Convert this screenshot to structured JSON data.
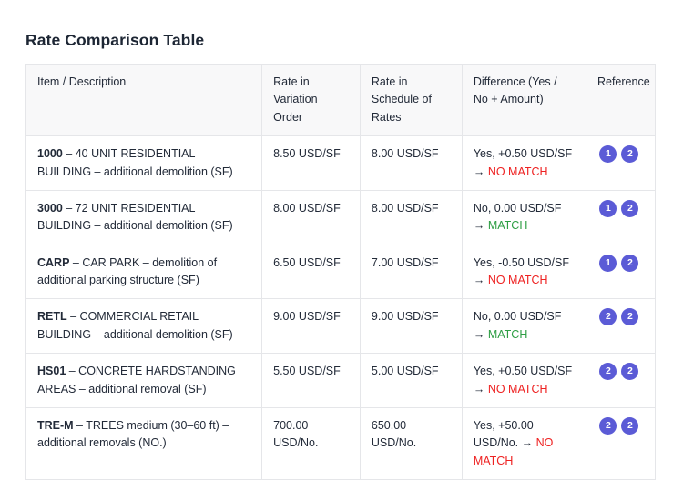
{
  "page": {
    "title": "Rate Comparison Table"
  },
  "table": {
    "columns": [
      {
        "id": "item-description",
        "label": "Item / Description",
        "align": "left"
      },
      {
        "id": "rate-variation-order",
        "label": "Rate in Variation Order",
        "align": "right"
      },
      {
        "id": "rate-schedule-of-rates",
        "label": "Rate in Schedule of Rates",
        "align": "right"
      },
      {
        "id": "difference",
        "label": "Difference (Yes / No + Amount)",
        "align": "left"
      },
      {
        "id": "reference",
        "label": "Reference",
        "align": "center"
      }
    ],
    "rows": [
      {
        "item_code": "1000",
        "item_description": "– 40 UNIT RESIDENTIAL BUILDING – additional demolition (SF)",
        "rate_in_variation_order": "8.50 USD/SF",
        "rate_in_schedule_of_rates": "8.00 USD/SF",
        "difference_text": "Yes, +0.50 USD/SF →",
        "difference_verdict": "NO MATCH",
        "verdict_status": "no-match",
        "references": [
          "1",
          "2"
        ]
      },
      {
        "item_code": "3000",
        "item_description": "– 72 UNIT RESIDENTIAL BUILDING – additional demolition (SF)",
        "rate_in_variation_order": "8.00 USD/SF",
        "rate_in_schedule_of_rates": "8.00 USD/SF",
        "difference_text": "No, 0.00 USD/SF →",
        "difference_verdict": "MATCH",
        "verdict_status": "match",
        "references": [
          "1",
          "2"
        ]
      },
      {
        "item_code": "CARP",
        "item_description": "– CAR PARK – demolition of additional parking structure (SF)",
        "rate_in_variation_order": "6.50 USD/SF",
        "rate_in_schedule_of_rates": "7.00 USD/SF",
        "difference_text": "Yes, -0.50 USD/SF →",
        "difference_verdict": "NO MATCH",
        "verdict_status": "no-match",
        "references": [
          "1",
          "2"
        ]
      },
      {
        "item_code": "RETL",
        "item_description": "– COMMERCIAL RETAIL BUILDING – additional demolition (SF)",
        "rate_in_variation_order": "9.00 USD/SF",
        "rate_in_schedule_of_rates": "9.00 USD/SF",
        "difference_text": "No, 0.00 USD/SF →",
        "difference_verdict": "MATCH",
        "verdict_status": "match",
        "references": [
          "2",
          "2"
        ]
      },
      {
        "item_code": "HS01",
        "item_description": "– CONCRETE HARDSTANDING AREAS – additional removal (SF)",
        "rate_in_variation_order": "5.50 USD/SF",
        "rate_in_schedule_of_rates": "5.00 USD/SF",
        "difference_text": "Yes, +0.50 USD/SF →",
        "difference_verdict": "NO MATCH",
        "verdict_status": "no-match",
        "references": [
          "2",
          "2"
        ]
      },
      {
        "item_code": "TRE-M",
        "item_description": "– TREES medium (30–60 ft) – additional removals (NO.)",
        "rate_in_variation_order": "700.00 USD/No.",
        "rate_in_schedule_of_rates": "650.00 USD/No.",
        "difference_text": "Yes, +50.00 USD/No. →",
        "difference_verdict": "NO MATCH",
        "verdict_status": "no-match",
        "references": [
          "2",
          "2"
        ]
      }
    ]
  },
  "colors": {
    "badge": "#5b5bd6",
    "match": "#2e9e44",
    "no_match": "#ee2222",
    "header_bg": "#f8f8f9",
    "border": "#e5e6e9",
    "text": "#222a38"
  }
}
